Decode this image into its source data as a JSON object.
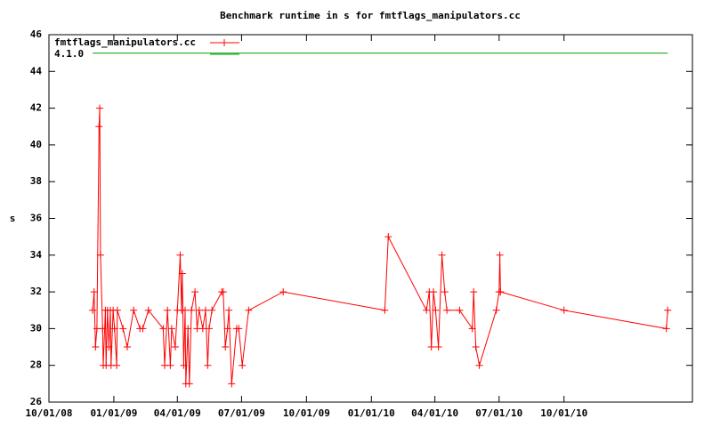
{
  "chart_data": {
    "type": "line",
    "title": "Benchmark runtime in s for fmtflags_manipulators.cc",
    "ylabel": "s",
    "xlim": [
      "10/01/08",
      "04/01/11"
    ],
    "xticks": [
      "10/01/08",
      "01/01/09",
      "04/01/09",
      "07/01/09",
      "10/01/09",
      "01/01/10",
      "04/01/10",
      "07/01/10",
      "10/01/10"
    ],
    "ylim": [
      26,
      46
    ],
    "yticks": [
      26,
      28,
      30,
      32,
      34,
      36,
      38,
      40,
      42,
      44,
      46
    ],
    "legend": "top-left",
    "series": [
      {
        "name": "fmtflags_manipulators.cc",
        "color": "#ff0000",
        "points": true,
        "x": [
          "12/02/08",
          "12/04/08",
          "12/06/08",
          "12/08/08",
          "12/11/08",
          "12/12/08",
          "12/13/08",
          "12/16/08",
          "12/17/08",
          "12/20/08",
          "12/21/08",
          "12/23/08",
          "12/25/08",
          "12/27/08",
          "12/28/08",
          "12/31/08",
          "01/02/09",
          "01/05/09",
          "01/06/09",
          "01/14/09",
          "01/20/09",
          "01/29/09",
          "02/07/09",
          "02/11/09",
          "02/19/09",
          "03/12/09",
          "03/14/09",
          "03/18/09",
          "03/22/09",
          "03/24/09",
          "03/29/09",
          "04/01/09",
          "04/05/09",
          "04/07/09",
          "04/08/09",
          "04/10/09",
          "04/12/09",
          "04/13/09",
          "04/16/09",
          "04/18/09",
          "04/21/09",
          "04/26/09",
          "04/29/09",
          "05/02/09",
          "05/07/09",
          "05/11/09",
          "05/14/09",
          "05/16/09",
          "05/20/09",
          "06/03/09",
          "06/05/09",
          "06/08/09",
          "06/11/09",
          "06/13/09",
          "06/17/09",
          "06/24/09",
          "06/27/09",
          "07/02/09",
          "07/11/09",
          "08/29/09",
          "01/20/10",
          "01/25/10",
          "03/20/10",
          "03/24/10",
          "03/27/10",
          "03/30/10",
          "04/02/10",
          "04/06/10",
          "04/11/10",
          "04/15/10",
          "04/18/10",
          "05/06/10",
          "05/24/10",
          "05/26/10",
          "05/29/10",
          "06/03/10",
          "06/27/10",
          "07/01/10",
          "07/02/10",
          "07/03/10",
          "10/01/10",
          "02/23/11",
          "02/25/11"
        ],
        "values": [
          31,
          32,
          29,
          30,
          41,
          42,
          34,
          30,
          28,
          31,
          28,
          31,
          29,
          31,
          28,
          31,
          30,
          28,
          31,
          30,
          29,
          31,
          30,
          30,
          31,
          30,
          28,
          31,
          28,
          30,
          29,
          31,
          34,
          31,
          33,
          28,
          31,
          27,
          30,
          27,
          31,
          32,
          30,
          31,
          30,
          31,
          28,
          30,
          31,
          32,
          32,
          29,
          30,
          31,
          27,
          30,
          30,
          28,
          31,
          32,
          31,
          35,
          31,
          32,
          29,
          32,
          31,
          29,
          34,
          32,
          31,
          31,
          30,
          32,
          29,
          28,
          31,
          32,
          34,
          32,
          31,
          30,
          31
        ]
      },
      {
        "name": "4.1.0",
        "color": "#00a000",
        "points": false,
        "x": [
          "12/02/08",
          "02/25/11"
        ],
        "values": [
          45,
          45
        ]
      }
    ]
  }
}
